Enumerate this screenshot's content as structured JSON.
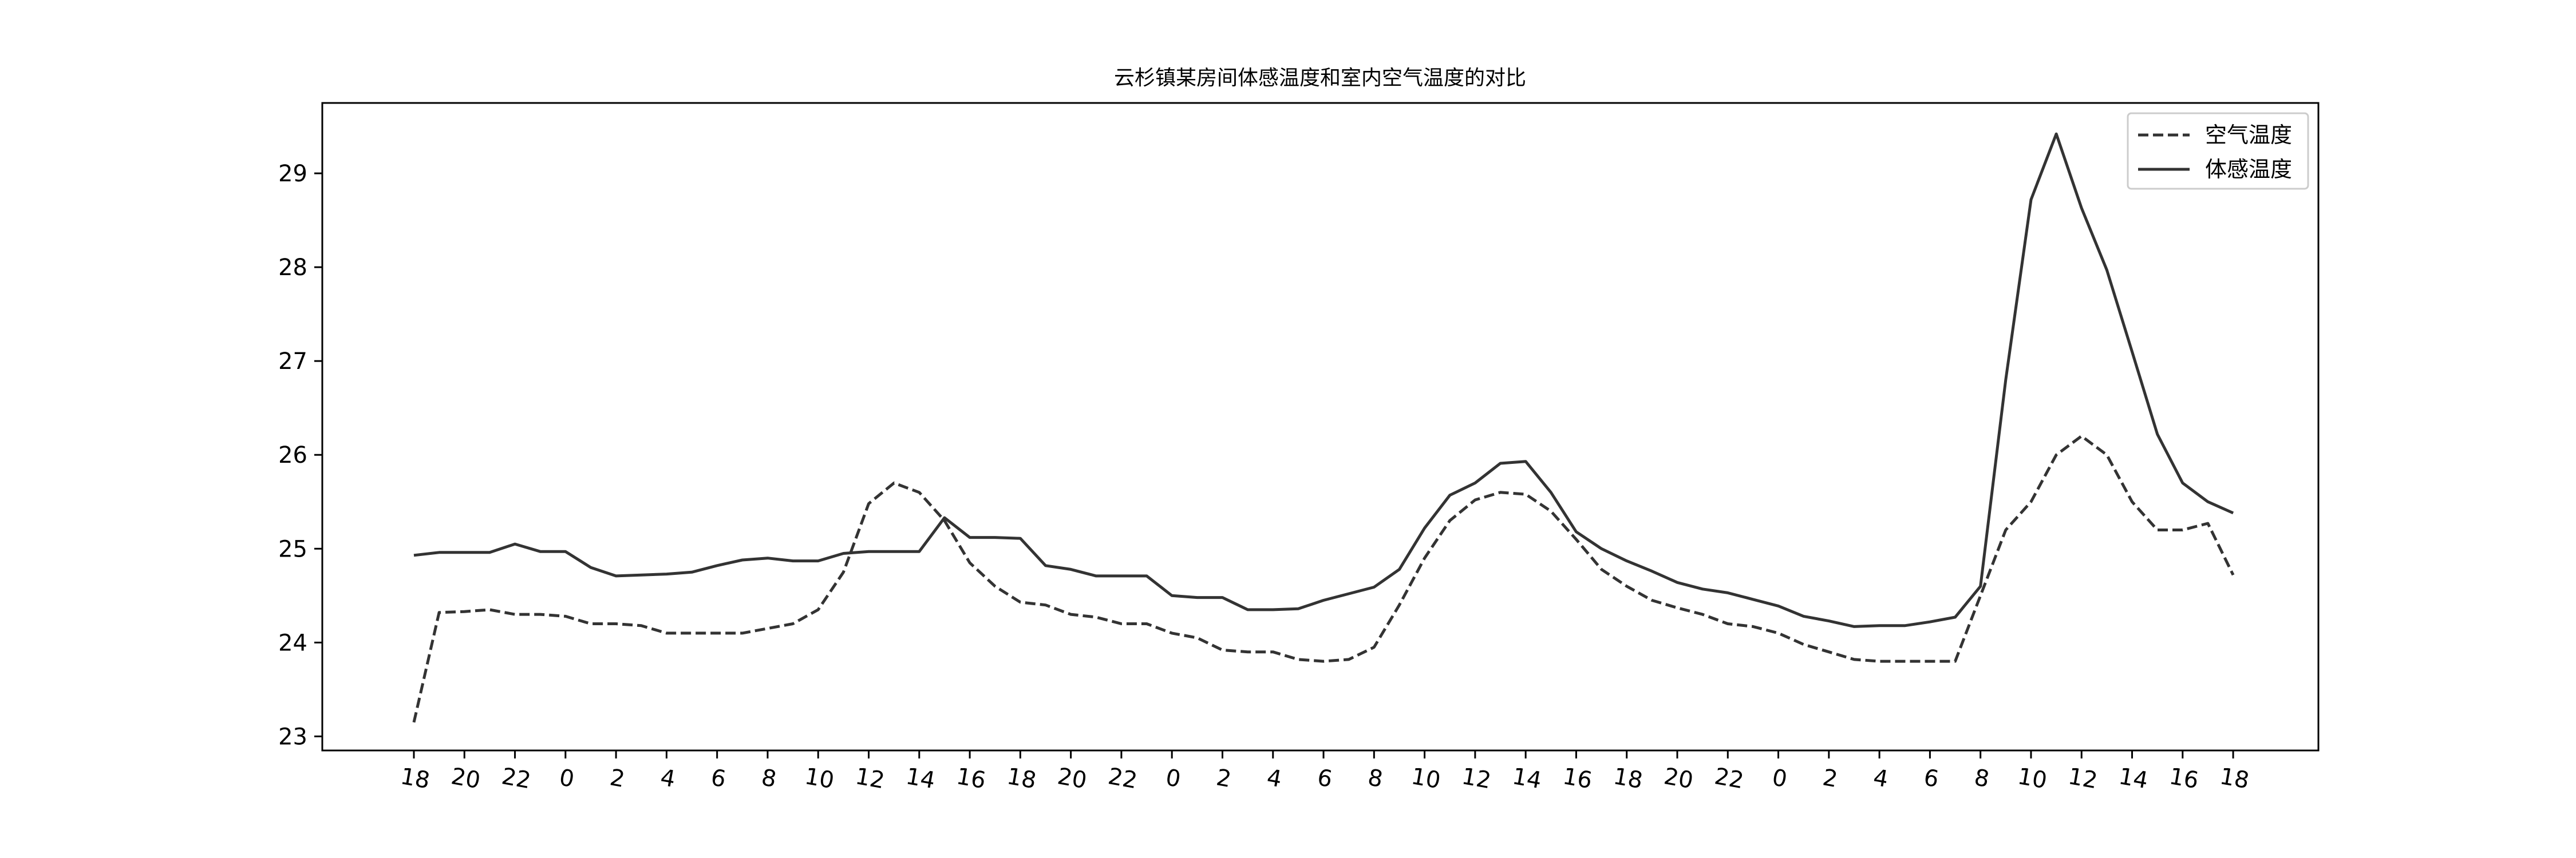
{
  "chart_data": {
    "type": "line",
    "title": "云杉镇某房间体感温度和室内空气温度的对比",
    "xlabel": "",
    "ylabel": "",
    "x_tick_labels": [
      "18",
      "20",
      "22",
      "0",
      "2",
      "4",
      "6",
      "8",
      "10",
      "12",
      "14",
      "16",
      "18",
      "20",
      "22",
      "0",
      "2",
      "4",
      "6",
      "8",
      "10",
      "12",
      "14",
      "16",
      "18",
      "20",
      "22",
      "0",
      "2",
      "4",
      "6",
      "8",
      "10",
      "12",
      "14",
      "16",
      "18"
    ],
    "x_tick_rotation_deg": 10,
    "ylim": [
      22.85,
      29.75
    ],
    "yticks": [
      23,
      24,
      25,
      26,
      27,
      28,
      29
    ],
    "grid": false,
    "legend_position": "upper right",
    "series": [
      {
        "name": "空气温度",
        "style": "dashed",
        "color": "#333333",
        "values": [
          23.15,
          24.32,
          24.33,
          24.35,
          24.3,
          24.3,
          24.28,
          24.2,
          24.2,
          24.18,
          24.1,
          24.1,
          24.1,
          24.1,
          24.15,
          24.2,
          24.35,
          24.75,
          25.48,
          25.7,
          25.6,
          25.3,
          24.85,
          24.6,
          24.43,
          24.4,
          24.3,
          24.27,
          24.2,
          24.2,
          24.1,
          24.05,
          23.92,
          23.9,
          23.9,
          23.82,
          23.8,
          23.82,
          23.95,
          24.4,
          24.9,
          25.3,
          25.52,
          25.6,
          25.58,
          25.4,
          25.1,
          24.78,
          24.6,
          24.45,
          24.37,
          24.3,
          24.2,
          24.17,
          24.1,
          23.98,
          23.9,
          23.82,
          23.8,
          23.8,
          23.8,
          23.8,
          24.5,
          25.2,
          25.5,
          26.0,
          26.2,
          26.0,
          25.5,
          25.2,
          25.2,
          25.27,
          24.72
        ]
      },
      {
        "name": "体感温度",
        "style": "solid",
        "color": "#333333",
        "values": [
          24.93,
          24.96,
          24.96,
          24.96,
          25.05,
          24.97,
          24.97,
          24.8,
          24.71,
          24.72,
          24.73,
          24.75,
          24.82,
          24.88,
          24.9,
          24.87,
          24.87,
          24.95,
          24.97,
          24.97,
          24.97,
          25.33,
          25.12,
          25.12,
          25.11,
          24.82,
          24.78,
          24.71,
          24.71,
          24.71,
          24.5,
          24.48,
          24.48,
          24.35,
          24.35,
          24.36,
          24.45,
          24.52,
          24.59,
          24.78,
          25.22,
          25.57,
          25.7,
          25.91,
          25.93,
          25.6,
          25.18,
          25.0,
          24.87,
          24.76,
          24.64,
          24.57,
          24.53,
          24.46,
          24.39,
          24.28,
          24.23,
          24.17,
          24.18,
          24.18,
          24.22,
          24.27,
          24.6,
          26.8,
          28.72,
          29.42,
          28.63,
          27.97,
          27.1,
          26.22,
          25.7,
          25.5,
          25.38
        ]
      }
    ]
  }
}
